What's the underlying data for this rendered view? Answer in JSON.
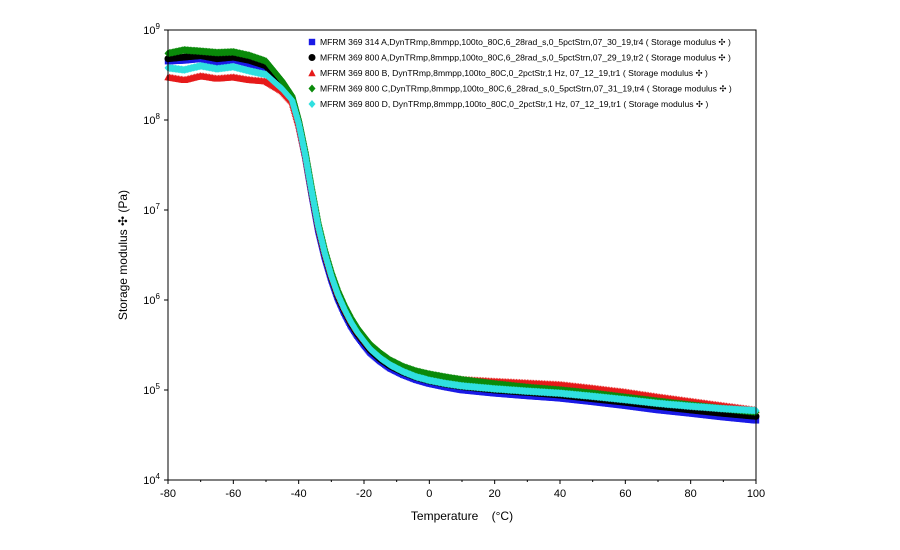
{
  "chart_data": {
    "type": "scatter",
    "title": "",
    "xlabel": "Temperature    (°C)",
    "ylabel": "Storage modulus ✣  (Pa)",
    "xlim": [
      -80,
      100
    ],
    "ylim": [
      10000,
      1000000000
    ],
    "yscale": "log",
    "x_ticks": [
      -80,
      -60,
      -40,
      -20,
      0,
      20,
      40,
      60,
      80,
      100
    ],
    "x_tick_labels": [
      "-80",
      "-60",
      "-40",
      "-20",
      "0",
      "20",
      "40",
      "60",
      "80",
      "100"
    ],
    "y_ticks": [
      {
        "value": 10000,
        "base": "10",
        "exp": "4"
      },
      {
        "value": 100000,
        "base": "10",
        "exp": "5"
      },
      {
        "value": 1000000,
        "base": "10",
        "exp": "6"
      },
      {
        "value": 10000000,
        "base": "10",
        "exp": "7"
      },
      {
        "value": 100000000,
        "base": "10",
        "exp": "8"
      },
      {
        "value": 1000000000,
        "base": "10",
        "exp": "9"
      }
    ],
    "legend_position": "top-right",
    "series": [
      {
        "name": "MFRM 369 314 A,DynTRmp,8mmpp,100to_80C,6_28rad_s,0_5pctStrn,07_30_19,tr4 ( Storage modulus ✣  )",
        "marker": "square",
        "color": "#1a1ae6",
        "x": [
          -80,
          -75,
          -70,
          -65,
          -60,
          -55,
          -50,
          -45,
          -42,
          -40,
          -38,
          -36,
          -34,
          -32,
          -30,
          -28,
          -26,
          -24,
          -22,
          -20,
          -18,
          -15,
          -12,
          -8,
          -4,
          0,
          5,
          10,
          20,
          30,
          40,
          50,
          60,
          70,
          80,
          90,
          100
        ],
        "y": [
          450000000,
          460000000,
          480000000,
          430000000,
          470000000,
          420000000,
          380000000,
          240000000,
          170000000,
          90000000,
          40000000,
          15000000,
          6000000,
          3000000,
          1700000,
          1050000,
          720000,
          520000,
          400000,
          320000,
          260000,
          210000,
          175000,
          148000,
          130000,
          118000,
          108000,
          100000,
          92000,
          86000,
          81000,
          74000,
          67000,
          60000,
          55000,
          50000,
          46000
        ]
      },
      {
        "name": "MFRM 369 800 A,DynTRmp,8mmpp,100to_80C,6_28rad_s,0_5pctStrn,07_29_19,tr2 ( Storage modulus ✣  )",
        "marker": "circle",
        "color": "#000000",
        "x": [
          -80,
          -75,
          -70,
          -65,
          -60,
          -55,
          -50,
          -45,
          -42,
          -40,
          -38,
          -36,
          -34,
          -32,
          -30,
          -28,
          -26,
          -24,
          -22,
          -20,
          -18,
          -15,
          -12,
          -8,
          -4,
          0,
          5,
          10,
          20,
          30,
          40,
          50,
          60,
          70,
          80,
          90,
          100
        ],
        "y": [
          480000000,
          500000000,
          520000000,
          480000000,
          500000000,
          460000000,
          400000000,
          250000000,
          175000000,
          95000000,
          42000000,
          16000000,
          6500000,
          3200000,
          1800000,
          1100000,
          760000,
          550000,
          420000,
          340000,
          275000,
          220000,
          185000,
          157000,
          138000,
          126000,
          116000,
          109000,
          100000,
          94000,
          88000,
          80000,
          73000,
          66000,
          60000,
          55000,
          51000
        ]
      },
      {
        "name": "MFRM 369 800 B, DynTRmp,8mmpp,100to_80C,0_2pctStr,1 Hz, 07_12_19,tr1 ( Storage modulus ✣  )",
        "marker": "triangle",
        "color": "#e61a1a",
        "x": [
          -80,
          -75,
          -70,
          -65,
          -60,
          -55,
          -50,
          -45,
          -42,
          -40,
          -38,
          -36,
          -34,
          -32,
          -30,
          -28,
          -26,
          -24,
          -22,
          -20,
          -18,
          -15,
          -12,
          -8,
          -4,
          0,
          5,
          10,
          20,
          30,
          40,
          50,
          60,
          70,
          80,
          90,
          100
        ],
        "y": [
          300000000,
          280000000,
          310000000,
          290000000,
          300000000,
          280000000,
          270000000,
          210000000,
          160000000,
          90000000,
          42000000,
          16500000,
          6800000,
          3400000,
          1950000,
          1200000,
          830000,
          600000,
          460000,
          370000,
          300000,
          245000,
          205000,
          175000,
          157000,
          145000,
          137000,
          131000,
          125000,
          120000,
          115000,
          105000,
          95000,
          84000,
          75000,
          67000,
          60000
        ]
      },
      {
        "name": "MFRM 369 800 C,DynTRmp,8mmpp,100to_80C,6_28rad_s,0_5pctStrn,07_31_19,tr4 ( Storage modulus ✣  )",
        "marker": "diamond",
        "color": "#0a8a0a",
        "x": [
          -80,
          -75,
          -70,
          -65,
          -60,
          -55,
          -50,
          -45,
          -42,
          -40,
          -38,
          -36,
          -34,
          -32,
          -30,
          -28,
          -26,
          -24,
          -22,
          -20,
          -18,
          -15,
          -12,
          -8,
          -4,
          0,
          5,
          10,
          20,
          30,
          40,
          50,
          60,
          70,
          80,
          90,
          100
        ],
        "y": [
          550000000,
          600000000,
          580000000,
          560000000,
          570000000,
          520000000,
          450000000,
          270000000,
          185000000,
          100000000,
          45000000,
          17500000,
          7200000,
          3600000,
          2050000,
          1280000,
          880000,
          640000,
          490000,
          395000,
          320000,
          258000,
          215000,
          182000,
          162000,
          150000,
          139000,
          130000,
          117000,
          107000,
          100000,
          92000,
          83000,
          75000,
          68000,
          62000,
          57000
        ]
      },
      {
        "name": "MFRM 369 800 D, DynTRmp,8mmpp,100to_80C,0_2pctStr,1 Hz, 07_12_19,tr1 ( Storage modulus ✣  )",
        "marker": "diamond",
        "color": "#30e0e0",
        "x": [
          -80,
          -75,
          -70,
          -65,
          -60,
          -55,
          -50,
          -45,
          -42,
          -40,
          -38,
          -36,
          -34,
          -32,
          -30,
          -28,
          -26,
          -24,
          -22,
          -20,
          -18,
          -15,
          -12,
          -8,
          -4,
          0,
          5,
          10,
          20,
          30,
          40,
          50,
          60,
          70,
          80,
          90,
          100
        ],
        "y": [
          380000000,
          360000000,
          400000000,
          370000000,
          390000000,
          350000000,
          320000000,
          220000000,
          165000000,
          92000000,
          41000000,
          16000000,
          6600000,
          3300000,
          1850000,
          1150000,
          790000,
          570000,
          435000,
          350000,
          283000,
          227000,
          190000,
          160000,
          140000,
          128000,
          118000,
          111000,
          103000,
          97000,
          92000,
          85000,
          78000,
          71000,
          66000,
          62000,
          59000
        ]
      }
    ]
  }
}
